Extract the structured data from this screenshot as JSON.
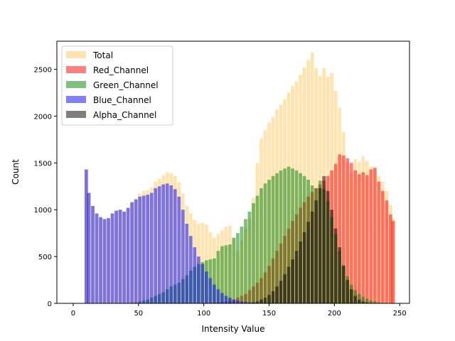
{
  "chart_data": {
    "type": "bar",
    "title": "",
    "xlabel": "Intensity Value",
    "ylabel": "Count",
    "xlim": [
      -12.5,
      257.5
    ],
    "ylim": [
      0,
      2800
    ],
    "xticks": [
      0,
      50,
      100,
      150,
      200,
      250
    ],
    "yticks": [
      0,
      500,
      1000,
      1500,
      2000,
      2500
    ],
    "grid": false,
    "legend_position": "upper-left",
    "series": [
      {
        "name": "Total",
        "color": "#FFA500",
        "opacity": 0.3,
        "x": [
          0,
          3,
          6,
          9,
          10,
          12,
          15,
          18,
          21,
          24,
          27,
          30,
          33,
          36,
          39,
          42,
          45,
          48,
          51,
          54,
          57,
          60,
          63,
          66,
          69,
          72,
          75,
          78,
          81,
          84,
          87,
          90,
          93,
          96,
          99,
          102,
          105,
          108,
          111,
          114,
          117,
          120,
          123,
          126,
          129,
          132,
          135,
          138,
          141,
          144,
          147,
          150,
          153,
          156,
          159,
          162,
          165,
          168,
          171,
          174,
          177,
          180,
          183,
          186,
          189,
          192,
          195,
          198,
          201,
          204,
          207,
          210,
          213,
          216,
          219,
          222,
          225,
          228,
          231,
          234,
          237,
          240,
          243,
          245
        ],
        "y": [
          0,
          0,
          0,
          0,
          1430,
          1180,
          1040,
          960,
          920,
          900,
          910,
          960,
          990,
          1000,
          980,
          1020,
          1080,
          1120,
          1170,
          1200,
          1210,
          1240,
          1300,
          1330,
          1370,
          1400,
          1390,
          1360,
          1290,
          1170,
          1040,
          960,
          890,
          850,
          860,
          840,
          760,
          700,
          740,
          780,
          820,
          830,
          700,
          560,
          670,
          800,
          910,
          1130,
          1500,
          1760,
          1850,
          1930,
          1990,
          2070,
          2120,
          2180,
          2250,
          2320,
          2370,
          2440,
          2520,
          2600,
          2680,
          2510,
          2430,
          2510,
          2420,
          2460,
          2270,
          2090,
          1830,
          1510,
          1390,
          1540,
          1510,
          1570,
          1520,
          1460,
          1430,
          1360,
          1300,
          1200,
          1050,
          900
        ]
      },
      {
        "name": "Red_Channel",
        "color": "#FF0000",
        "opacity": 0.5,
        "x": [
          0,
          3,
          6,
          9,
          10,
          12,
          15,
          18,
          21,
          24,
          27,
          30,
          33,
          36,
          39,
          42,
          45,
          48,
          51,
          54,
          57,
          60,
          63,
          66,
          69,
          72,
          75,
          78,
          81,
          84,
          87,
          90,
          93,
          96,
          99,
          102,
          105,
          108,
          111,
          114,
          117,
          120,
          123,
          126,
          129,
          132,
          135,
          138,
          141,
          144,
          147,
          150,
          153,
          156,
          159,
          162,
          165,
          168,
          171,
          174,
          177,
          180,
          183,
          186,
          189,
          192,
          195,
          198,
          201,
          204,
          207,
          210,
          213,
          216,
          219,
          222,
          225,
          228,
          231,
          234,
          237,
          240,
          243,
          245
        ],
        "y": [
          0,
          0,
          0,
          0,
          0,
          0,
          0,
          0,
          0,
          0,
          0,
          0,
          0,
          0,
          0,
          0,
          0,
          0,
          0,
          0,
          0,
          0,
          0,
          0,
          0,
          0,
          0,
          0,
          0,
          0,
          0,
          0,
          0,
          0,
          0,
          0,
          0,
          5,
          10,
          15,
          20,
          30,
          40,
          60,
          80,
          100,
          140,
          180,
          220,
          270,
          330,
          400,
          480,
          560,
          640,
          720,
          800,
          880,
          950,
          1020,
          1080,
          1140,
          1190,
          1230,
          1270,
          1310,
          1360,
          1420,
          1490,
          1590,
          1580,
          1550,
          1500,
          1420,
          1380,
          1400,
          1370,
          1430,
          1450,
          1300,
          1200,
          1100,
          950,
          880
        ]
      },
      {
        "name": "Green_Channel",
        "color": "#008000",
        "opacity": 0.5,
        "x": [
          0,
          3,
          6,
          9,
          10,
          12,
          15,
          18,
          21,
          24,
          27,
          30,
          33,
          36,
          39,
          42,
          45,
          48,
          51,
          54,
          57,
          60,
          63,
          66,
          69,
          72,
          75,
          78,
          81,
          84,
          87,
          90,
          93,
          96,
          99,
          102,
          105,
          108,
          111,
          114,
          117,
          120,
          123,
          126,
          129,
          132,
          135,
          138,
          141,
          144,
          147,
          150,
          153,
          156,
          159,
          162,
          165,
          168,
          171,
          174,
          177,
          180,
          183,
          186,
          189,
          192,
          195,
          198,
          201,
          204,
          207,
          210,
          213,
          216,
          219,
          222,
          225,
          228,
          231,
          234,
          237,
          240,
          243,
          245
        ],
        "y": [
          0,
          0,
          0,
          0,
          0,
          0,
          0,
          0,
          0,
          0,
          0,
          0,
          0,
          0,
          0,
          0,
          5,
          10,
          20,
          30,
          40,
          60,
          80,
          100,
          120,
          150,
          180,
          200,
          220,
          260,
          300,
          350,
          390,
          420,
          440,
          460,
          470,
          480,
          560,
          610,
          620,
          630,
          700,
          750,
          820,
          900,
          980,
          1070,
          1150,
          1230,
          1280,
          1320,
          1360,
          1390,
          1420,
          1440,
          1460,
          1440,
          1420,
          1390,
          1360,
          1320,
          1260,
          1230,
          1310,
          1220,
          1090,
          920,
          740,
          560,
          410,
          290,
          200,
          140,
          100,
          70,
          50,
          30,
          20,
          10,
          5,
          0,
          0,
          0
        ]
      },
      {
        "name": "Blue_Channel",
        "color": "#0000FF",
        "opacity": 0.5,
        "x": [
          0,
          3,
          6,
          9,
          10,
          12,
          15,
          18,
          21,
          24,
          27,
          30,
          33,
          36,
          39,
          42,
          45,
          48,
          51,
          54,
          57,
          60,
          63,
          66,
          69,
          72,
          75,
          78,
          81,
          84,
          87,
          90,
          93,
          96,
          99,
          102,
          105,
          108,
          111,
          114,
          117,
          120,
          123,
          126,
          129,
          132,
          135,
          138,
          141,
          144,
          147,
          150,
          153,
          156,
          159,
          162,
          165,
          168,
          171,
          174,
          177,
          180,
          183,
          186,
          189,
          192,
          195,
          198,
          201,
          204,
          207,
          210,
          213,
          216,
          219,
          222,
          225,
          228,
          231,
          234,
          237,
          240,
          243,
          245
        ],
        "y": [
          0,
          0,
          0,
          0,
          1430,
          1180,
          1040,
          960,
          920,
          900,
          910,
          960,
          990,
          1000,
          980,
          1020,
          1080,
          1110,
          1140,
          1150,
          1160,
          1180,
          1230,
          1250,
          1270,
          1280,
          1260,
          1220,
          1140,
          1000,
          850,
          720,
          600,
          500,
          420,
          340,
          270,
          200,
          150,
          110,
          80,
          60,
          40,
          30,
          20,
          15,
          10,
          8,
          6,
          5,
          4,
          3,
          2,
          1,
          0,
          0,
          0,
          0,
          0,
          0,
          0,
          0,
          0,
          0,
          0,
          0,
          0,
          0,
          0,
          0,
          0,
          0,
          0,
          0,
          0,
          0,
          0,
          0,
          0,
          0,
          0,
          0,
          0,
          0
        ]
      },
      {
        "name": "Alpha_Channel",
        "color": "#000000",
        "opacity": 0.5,
        "x": [
          0,
          3,
          6,
          9,
          10,
          12,
          15,
          18,
          21,
          24,
          27,
          30,
          33,
          36,
          39,
          42,
          45,
          48,
          51,
          54,
          57,
          60,
          63,
          66,
          69,
          72,
          75,
          78,
          81,
          84,
          87,
          90,
          93,
          96,
          99,
          102,
          105,
          108,
          111,
          114,
          117,
          120,
          123,
          126,
          129,
          132,
          135,
          138,
          141,
          144,
          147,
          150,
          153,
          156,
          159,
          162,
          165,
          168,
          171,
          174,
          177,
          180,
          183,
          186,
          189,
          192,
          195,
          198,
          201,
          204,
          207,
          210,
          213,
          216,
          219,
          222,
          225,
          228,
          231,
          234,
          237,
          240,
          243,
          245
        ],
        "y": [
          0,
          0,
          0,
          0,
          0,
          0,
          0,
          0,
          0,
          0,
          0,
          0,
          0,
          0,
          0,
          0,
          0,
          0,
          0,
          0,
          0,
          0,
          0,
          0,
          0,
          0,
          0,
          0,
          0,
          0,
          0,
          0,
          0,
          0,
          0,
          0,
          0,
          0,
          0,
          0,
          0,
          0,
          0,
          0,
          0,
          0,
          5,
          10,
          20,
          40,
          60,
          90,
          130,
          180,
          240,
          310,
          390,
          470,
          560,
          660,
          760,
          870,
          980,
          1100,
          1230,
          1360,
          1200,
          1000,
          800,
          600,
          400,
          250,
          150,
          80,
          40,
          20,
          10,
          5,
          0,
          0,
          0,
          0,
          0,
          0
        ]
      }
    ]
  }
}
